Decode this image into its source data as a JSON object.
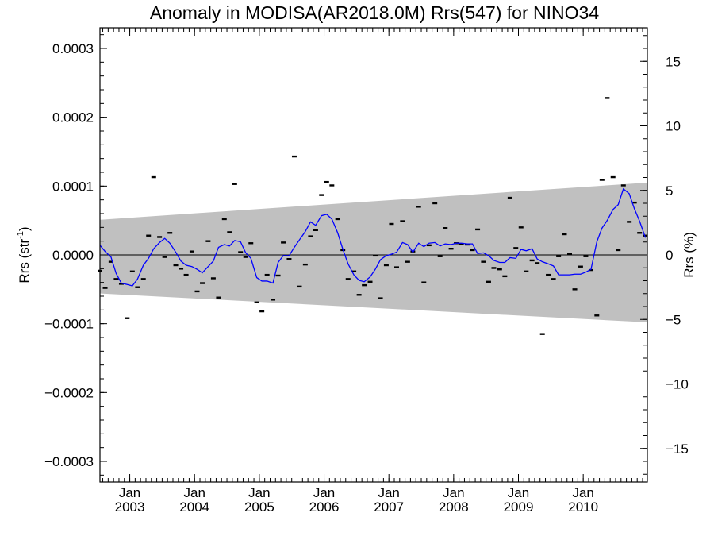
{
  "chart_data": {
    "type": "scatter",
    "title": "Anomaly in MODISA(AR2018.0M) Rrs(547) for NINO34",
    "ylabel_left": {
      "base": "Rrs (str",
      "sup": "-1",
      "close": ")"
    },
    "ylabel_right": "Rrs (%)",
    "ylim_left": [
      -0.00033,
      0.00033
    ],
    "ylim_right": [
      -17.6,
      17.6
    ],
    "xlim": [
      2002.54,
      2010.99
    ],
    "left_ticks": [
      {
        "value": 0.0003,
        "label": "0.0003"
      },
      {
        "value": 0.0002,
        "label": "0.0002"
      },
      {
        "value": 0.0001,
        "label": "0.0001"
      },
      {
        "value": 0.0,
        "label": "0.0000"
      },
      {
        "value": -0.0001,
        "label": "−0.0001"
      },
      {
        "value": -0.0002,
        "label": "−0.0002"
      },
      {
        "value": -0.0003,
        "label": "−0.0003"
      }
    ],
    "right_ticks": [
      {
        "value": 15,
        "label": "15"
      },
      {
        "value": 10,
        "label": "10"
      },
      {
        "value": 5,
        "label": "5"
      },
      {
        "value": 0,
        "label": "0"
      },
      {
        "value": -5,
        "label": "−5"
      },
      {
        "value": -10,
        "label": "−10"
      },
      {
        "value": -15,
        "label": "−15"
      }
    ],
    "x_ticks": [
      {
        "value": 2003.0,
        "month": "Jan",
        "year": "2003"
      },
      {
        "value": 2004.0,
        "month": "Jan",
        "year": "2004"
      },
      {
        "value": 2005.0,
        "month": "Jan",
        "year": "2005"
      },
      {
        "value": 2006.0,
        "month": "Jan",
        "year": "2006"
      },
      {
        "value": 2007.0,
        "month": "Jan",
        "year": "2007"
      },
      {
        "value": 2008.0,
        "month": "Jan",
        "year": "2008"
      },
      {
        "value": 2009.0,
        "month": "Jan",
        "year": "2009"
      },
      {
        "value": 2010.0,
        "month": "Jan",
        "year": "2010"
      }
    ],
    "uncertainty_band": {
      "start": {
        "x": 2002.54,
        "upper": 5.1e-05,
        "lower": -5.6e-05
      },
      "end": {
        "x": 2010.99,
        "upper": 0.000105,
        "lower": -9.8e-05
      }
    },
    "zero_line": 0.0,
    "colors": {
      "band": "#c0c0c0",
      "smoothed": "#0000ff",
      "points": "#000000",
      "zero_line": "#000000"
    },
    "monthly_anomalies": {
      "x": [
        2002.54,
        2002.62,
        2002.71,
        2002.79,
        2002.87,
        2002.96,
        2003.04,
        2003.12,
        2003.21,
        2003.29,
        2003.37,
        2003.46,
        2003.54,
        2003.62,
        2003.71,
        2003.79,
        2003.87,
        2003.96,
        2004.04,
        2004.12,
        2004.21,
        2004.29,
        2004.37,
        2004.46,
        2004.54,
        2004.62,
        2004.71,
        2004.79,
        2004.87,
        2004.96,
        2005.04,
        2005.12,
        2005.21,
        2005.29,
        2005.37,
        2005.46,
        2005.54,
        2005.62,
        2005.71,
        2005.79,
        2005.87,
        2005.96,
        2006.04,
        2006.12,
        2006.21,
        2006.29,
        2006.37,
        2006.46,
        2006.54,
        2006.62,
        2006.71,
        2006.79,
        2006.87,
        2006.96,
        2007.04,
        2007.12,
        2007.21,
        2007.29,
        2007.37,
        2007.46,
        2007.54,
        2007.62,
        2007.71,
        2007.79,
        2007.87,
        2007.96,
        2008.04,
        2008.12,
        2008.21,
        2008.29,
        2008.37,
        2008.46,
        2008.54,
        2008.62,
        2008.71,
        2008.79,
        2008.87,
        2008.96,
        2009.04,
        2009.12,
        2009.21,
        2009.29,
        2009.37,
        2009.46,
        2009.54,
        2009.62,
        2009.71,
        2009.79,
        2009.87,
        2009.96,
        2010.04,
        2010.12,
        2010.21,
        2010.29,
        2010.37,
        2010.46,
        2010.54,
        2010.62,
        2010.71,
        2010.79,
        2010.87,
        2010.96
      ],
      "y": [
        -2.3e-05,
        -4.8e-05,
        -1e-05,
        -3.5e-05,
        -4.2e-05,
        -9.2e-05,
        -2.4e-05,
        -4.7e-05,
        -3.5e-05,
        2.8e-05,
        0.000113,
        2.6e-05,
        -3e-06,
        3.2e-05,
        -1.5e-05,
        -2e-05,
        -2.9e-05,
        5e-06,
        -5.3e-05,
        -4.1e-05,
        2e-05,
        -3.4e-05,
        -6.2e-05,
        5.2e-05,
        3.3e-05,
        0.000103,
        4e-06,
        -3e-06,
        1.7e-05,
        -6.9e-05,
        -8.2e-05,
        -2.9e-05,
        -6.5e-05,
        -3e-05,
        1.8e-05,
        -6e-06,
        0.000143,
        -4.6e-05,
        -1.4e-05,
        2.7e-05,
        3.6e-05,
        8.7e-05,
        0.000106,
        0.000101,
        5.2e-05,
        7e-06,
        -3.5e-05,
        -2.4e-05,
        -5.8e-05,
        -4.4e-05,
        -3.9e-05,
        -1e-06,
        -6.3e-05,
        -1.5e-05,
        4.5e-05,
        -1.8e-05,
        4.9e-05,
        -1e-05,
        5e-06,
        7e-05,
        -4e-05,
        1.4e-05,
        7.5e-05,
        -2e-06,
        3.9e-05,
        9e-06,
        1.7e-05,
        1.6e-05,
        1.5e-05,
        7e-06,
        3.7e-05,
        -1e-05,
        -3.9e-05,
        -1.9e-05,
        -2.1e-05,
        -3.1e-05,
        8.3e-05,
        1e-05,
        4e-05,
        -2.4e-05,
        -8e-06,
        -1.2e-05,
        -0.000115,
        -2.9e-05,
        -3.5e-05,
        -2e-06,
        3e-05,
        1e-06,
        -5e-05,
        -1.7e-05,
        -2e-06,
        -2.2e-05,
        -8.8e-05,
        0.000109,
        0.000228,
        0.000113,
        7e-06,
        0.000101,
        4.8e-05,
        7.6e-05,
        3.2e-05,
        2.8e-05
      ]
    },
    "smoothed_anomaly": {
      "x": [
        2002.54,
        2002.62,
        2002.71,
        2002.79,
        2002.87,
        2002.96,
        2003.04,
        2003.12,
        2003.21,
        2003.29,
        2003.37,
        2003.46,
        2003.54,
        2003.62,
        2003.71,
        2003.79,
        2003.87,
        2003.96,
        2004.04,
        2004.12,
        2004.21,
        2004.29,
        2004.37,
        2004.46,
        2004.54,
        2004.62,
        2004.71,
        2004.79,
        2004.87,
        2004.96,
        2005.04,
        2005.12,
        2005.21,
        2005.29,
        2005.37,
        2005.46,
        2005.54,
        2005.62,
        2005.71,
        2005.79,
        2005.87,
        2005.96,
        2006.04,
        2006.12,
        2006.21,
        2006.29,
        2006.37,
        2006.46,
        2006.54,
        2006.62,
        2006.71,
        2006.79,
        2006.87,
        2006.96,
        2007.04,
        2007.12,
        2007.21,
        2007.29,
        2007.37,
        2007.46,
        2007.54,
        2007.62,
        2007.71,
        2007.79,
        2007.87,
        2007.96,
        2008.04,
        2008.12,
        2008.21,
        2008.29,
        2008.37,
        2008.46,
        2008.54,
        2008.62,
        2008.71,
        2008.79,
        2008.87,
        2008.96,
        2009.04,
        2009.12,
        2009.21,
        2009.29,
        2009.37,
        2009.46,
        2009.54,
        2009.62,
        2009.71,
        2009.79,
        2009.87,
        2009.96,
        2010.04,
        2010.12,
        2010.21,
        2010.29,
        2010.37,
        2010.46,
        2010.54,
        2010.62,
        2010.71,
        2010.79,
        2010.87,
        2010.96
      ],
      "y": [
        1.4e-05,
        5e-06,
        -3e-06,
        -2.7e-05,
        -4.1e-05,
        -4.3e-05,
        -4.5e-05,
        -3.5e-05,
        -1.5e-05,
        -5e-06,
        9e-06,
        1.8e-05,
        2.4e-05,
        1.7e-05,
        4e-06,
        -9e-06,
        -1.5e-05,
        -1.7e-05,
        -2.1e-05,
        -2.6e-05,
        -1.7e-05,
        -9e-06,
        1.1e-05,
        1.5e-05,
        1.3e-05,
        2.1e-05,
        1.9e-05,
        3e-06,
        -5e-06,
        -3.3e-05,
        -3.8e-05,
        -3.8e-05,
        -4.1e-05,
        -1.1e-05,
        -1e-06,
        -1e-06,
        1.1e-05,
        2.2e-05,
        3.4e-05,
        4.8e-05,
        4.3e-05,
        5.7e-05,
        5.9e-05,
        5.2e-05,
        3.2e-05,
        8e-06,
        -1.3e-05,
        -2.9e-05,
        -3.7e-05,
        -3.9e-05,
        -3.2e-05,
        -2.1e-05,
        -7e-06,
        -1e-06,
        1e-06,
        4e-06,
        1.8e-05,
        1.5e-05,
        4e-06,
        1.7e-05,
        1.2e-05,
        1.7e-05,
        1.8e-05,
        1.3e-05,
        1.6e-05,
        1.5e-05,
        1.7e-05,
        1.7e-05,
        1.6e-05,
        1.6e-05,
        2e-06,
        3e-06,
        -1e-06,
        -8e-06,
        -1.1e-05,
        -1.1e-05,
        -4e-06,
        -5e-06,
        8e-06,
        6e-06,
        9e-06,
        -6e-06,
        -1e-05,
        -1.3e-05,
        -1.6e-05,
        -2.9e-05,
        -2.9e-05,
        -2.9e-05,
        -2.8e-05,
        -2.8e-05,
        -2.5e-05,
        -2.1e-05,
        1.9e-05,
        3.9e-05,
        5e-05,
        6.6e-05,
        7.3e-05,
        9.6e-05,
        8.9e-05,
        6.7e-05,
        4.9e-05,
        2.5e-05
      ]
    }
  }
}
